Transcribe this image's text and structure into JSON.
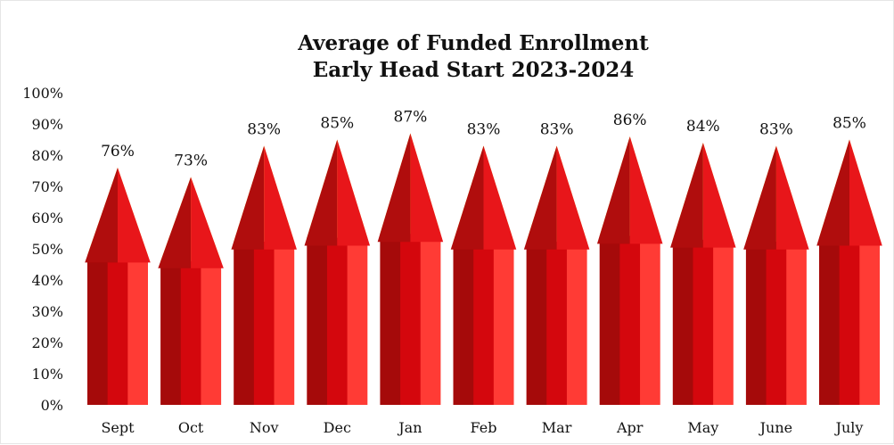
{
  "chart_data": {
    "type": "bar",
    "title": [
      "Average of Funded Enrollment",
      "Early Head Start 2023-2024"
    ],
    "categories": [
      "Sept",
      "Oct",
      "Nov",
      "Dec",
      "Jan",
      "Feb",
      "Mar",
      "Apr",
      "May",
      "June",
      "July"
    ],
    "values": [
      76,
      73,
      83,
      85,
      87,
      83,
      83,
      86,
      84,
      83,
      85
    ],
    "data_labels": [
      "76%",
      "73%",
      "83%",
      "85%",
      "87%",
      "83%",
      "83%",
      "86%",
      "84%",
      "83%",
      "85%"
    ],
    "yticks": [
      "0%",
      "10%",
      "20%",
      "30%",
      "40%",
      "50%",
      "60%",
      "70%",
      "80%",
      "90%",
      "100%"
    ],
    "ylim": [
      0,
      100
    ],
    "grid": false,
    "legend": "none",
    "colors": {
      "body_dark": "#a50a0a",
      "body_mid": "#d4070d",
      "body_light": "#ff3b35",
      "wood_dark": "#f5b800",
      "wood_light": "#ffd740",
      "tip_dark": "#b00d0d",
      "tip_light": "#e8161a"
    }
  }
}
